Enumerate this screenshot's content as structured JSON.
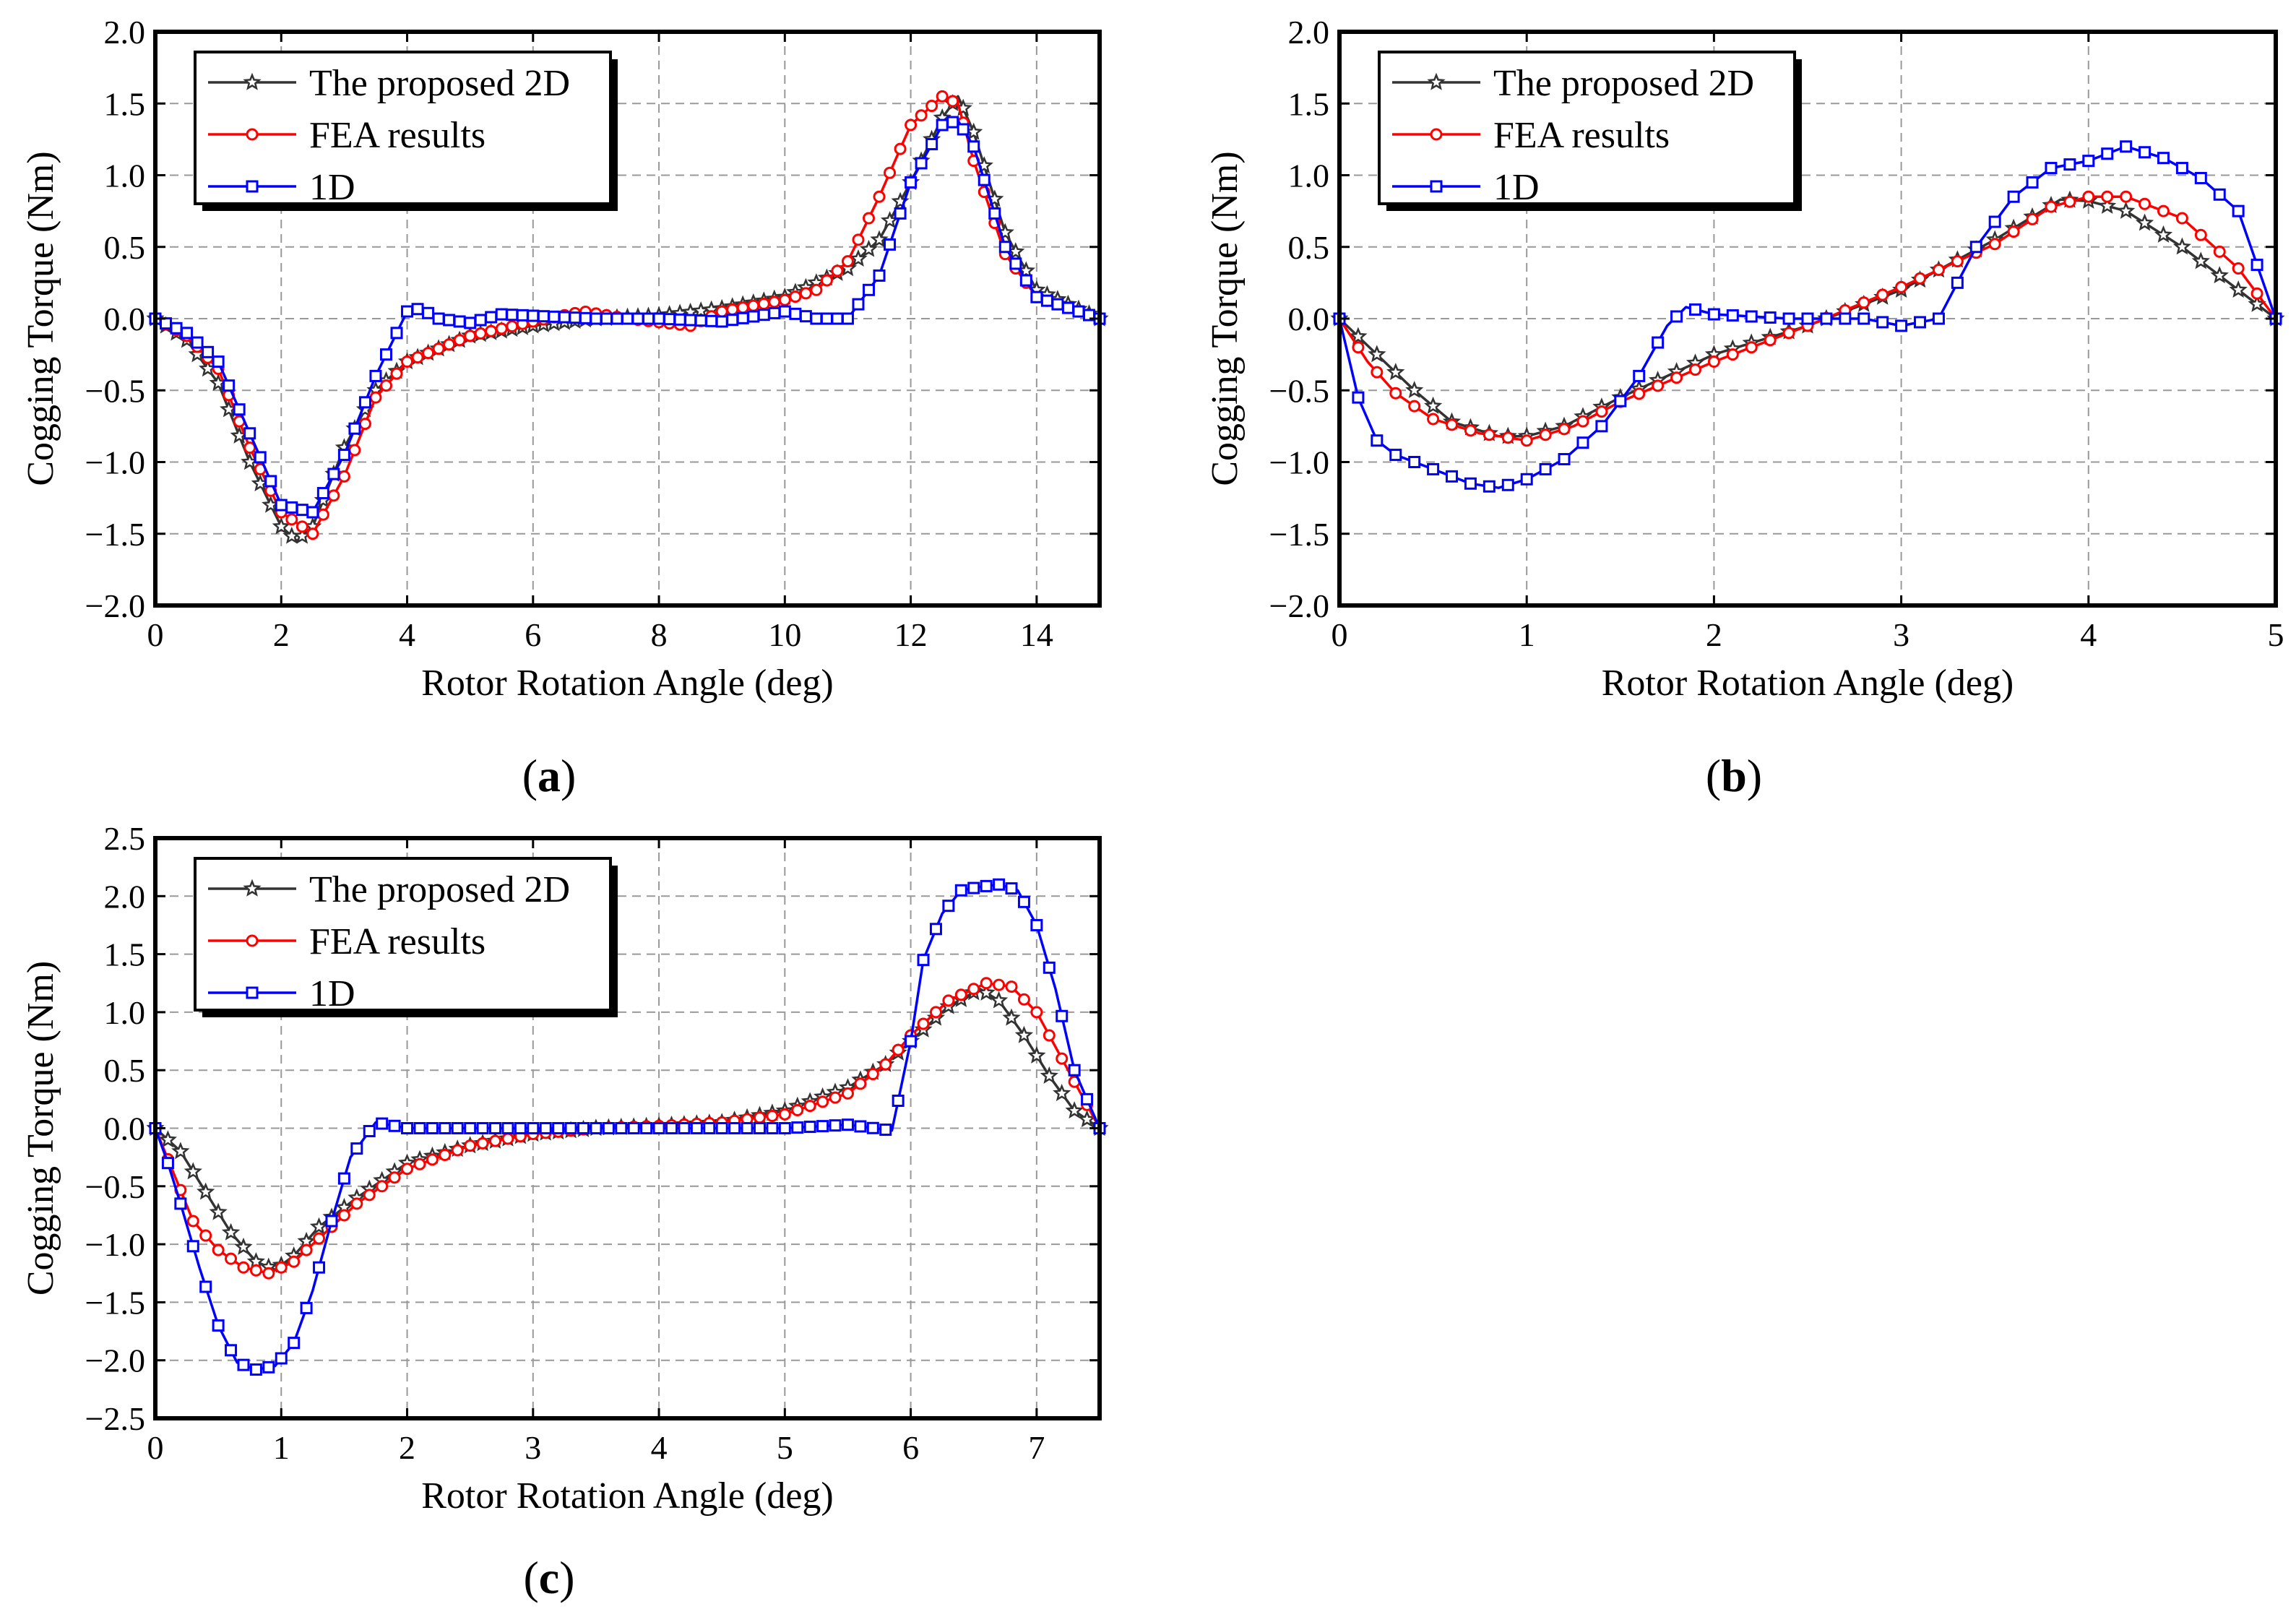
{
  "chart_data": [
    {
      "type": "line",
      "panel": "(a)",
      "caption_letter": "a",
      "xlabel": "Rotor Rotation Angle (deg)",
      "ylabel": "Cogging Torque (Nm)",
      "xlim": [
        0,
        15
      ],
      "ylim": [
        -2.0,
        2.0
      ],
      "xticks": [
        0,
        2,
        4,
        6,
        8,
        10,
        12,
        14
      ],
      "xtick_labels": [
        "0",
        "2",
        "4",
        "6",
        "8",
        "10",
        "12",
        "14"
      ],
      "yticks": [
        -2.0,
        -1.5,
        -1.0,
        -0.5,
        0.0,
        0.5,
        1.0,
        1.5,
        2.0
      ],
      "ytick_labels": [
        "−2.0",
        "−1.5",
        "−1.0",
        "−0.5",
        "0.0",
        "0.5",
        "1.0",
        "1.5",
        "2.0"
      ],
      "grid": true,
      "legend_position": "top-left",
      "series": [
        {
          "name": "The proposed 2D",
          "color": "#333333",
          "marker": "star",
          "x": [
            0,
            0.5,
            1,
            1.5,
            2,
            2.25,
            2.5,
            3,
            3.5,
            4,
            5,
            6,
            7,
            8,
            9,
            10,
            11,
            11.5,
            12,
            12.5,
            12.75,
            13,
            13.5,
            14,
            15
          ],
          "y": [
            0,
            -0.15,
            -0.45,
            -1.0,
            -1.45,
            -1.55,
            -1.45,
            -0.9,
            -0.5,
            -0.3,
            -0.12,
            -0.05,
            0.0,
            0.02,
            0.07,
            0.15,
            0.35,
            0.55,
            0.95,
            1.4,
            1.55,
            1.3,
            0.6,
            0.2,
            0.0
          ]
        },
        {
          "name": "FEA results",
          "color": "#ff0000",
          "marker": "circle",
          "x": [
            0,
            0.5,
            1,
            1.5,
            2,
            2.5,
            3,
            3.5,
            4,
            5,
            6,
            6.8,
            7.5,
            8.5,
            9,
            10,
            10.5,
            11,
            11.5,
            12,
            12.5,
            12.75,
            13,
            13.5,
            14,
            15
          ],
          "y": [
            0,
            -0.12,
            -0.35,
            -0.9,
            -1.35,
            -1.5,
            -1.1,
            -0.55,
            -0.3,
            -0.12,
            -0.02,
            0.05,
            0.0,
            -0.05,
            0.05,
            0.13,
            0.2,
            0.4,
            0.85,
            1.35,
            1.55,
            1.5,
            1.1,
            0.45,
            0.15,
            0.0
          ]
        },
        {
          "name": "1D",
          "color": "#0000ff",
          "marker": "square",
          "x": [
            0,
            0.5,
            1,
            1.5,
            2,
            2.5,
            3,
            3.5,
            4,
            4.2,
            4.5,
            5,
            5.5,
            6,
            7,
            8,
            9,
            10,
            10.5,
            11,
            11.5,
            12,
            12.5,
            12.75,
            13,
            13.5,
            14,
            15
          ],
          "y": [
            0,
            -0.1,
            -0.3,
            -0.8,
            -1.3,
            -1.35,
            -0.95,
            -0.4,
            0.05,
            0.07,
            0.0,
            -0.03,
            0.03,
            0.02,
            0.0,
            0.0,
            -0.02,
            0.05,
            0.0,
            0.0,
            0.3,
            0.95,
            1.35,
            1.38,
            1.2,
            0.5,
            0.15,
            0.0
          ]
        }
      ]
    },
    {
      "type": "line",
      "panel": "(b)",
      "caption_letter": "b",
      "xlabel": "Rotor Rotation Angle (deg)",
      "ylabel": "Cogging Torque (Nm)",
      "xlim": [
        0,
        5
      ],
      "ylim": [
        -2.0,
        2.0
      ],
      "xticks": [
        0,
        1,
        2,
        3,
        4,
        5
      ],
      "xtick_labels": [
        "0",
        "1",
        "2",
        "3",
        "4",
        "5"
      ],
      "yticks": [
        -2.0,
        -1.5,
        -1.0,
        -0.5,
        0.0,
        0.5,
        1.0,
        1.5,
        2.0
      ],
      "ytick_labels": [
        "−2.0",
        "−1.5",
        "−1.0",
        "−0.5",
        "0.0",
        "0.5",
        "1.0",
        "1.5",
        "2.0"
      ],
      "grid": true,
      "legend_position": "top-left",
      "series": [
        {
          "name": "The proposed 2D",
          "color": "#333333",
          "marker": "star",
          "x": [
            0,
            0.2,
            0.4,
            0.6,
            0.85,
            1.0,
            1.2,
            1.5,
            2.0,
            2.5,
            3.0,
            3.5,
            3.85,
            4.0,
            4.2,
            4.5,
            4.8,
            5.0
          ],
          "y": [
            0,
            -0.25,
            -0.5,
            -0.72,
            -0.82,
            -0.82,
            -0.75,
            -0.55,
            -0.25,
            -0.05,
            0.2,
            0.55,
            0.83,
            0.82,
            0.75,
            0.5,
            0.2,
            0.0
          ]
        },
        {
          "name": "FEA results",
          "color": "#ff0000",
          "marker": "circle",
          "x": [
            0,
            0.15,
            0.3,
            0.5,
            0.75,
            1.0,
            1.25,
            1.5,
            2.0,
            2.5,
            3.0,
            3.5,
            3.8,
            4.0,
            4.2,
            4.5,
            4.8,
            5.0
          ],
          "y": [
            0,
            -0.3,
            -0.52,
            -0.7,
            -0.8,
            -0.85,
            -0.75,
            -0.58,
            -0.3,
            -0.05,
            0.22,
            0.52,
            0.78,
            0.85,
            0.85,
            0.7,
            0.35,
            0.0
          ]
        },
        {
          "name": "1D",
          "color": "#0000ff",
          "marker": "square",
          "x": [
            0,
            0.1,
            0.2,
            0.3,
            0.5,
            0.7,
            0.85,
            1.0,
            1.2,
            1.4,
            1.6,
            1.75,
            1.85,
            2.0,
            2.4,
            2.8,
            3.0,
            3.2,
            3.4,
            3.6,
            3.8,
            4.0,
            4.2,
            4.4,
            4.6,
            4.8,
            5.0
          ],
          "y": [
            0,
            -0.55,
            -0.85,
            -0.95,
            -1.05,
            -1.15,
            -1.18,
            -1.12,
            -0.98,
            -0.75,
            -0.4,
            -0.05,
            0.08,
            0.03,
            0.0,
            0.0,
            -0.05,
            0.0,
            0.5,
            0.85,
            1.05,
            1.1,
            1.2,
            1.12,
            0.98,
            0.75,
            0.0
          ]
        }
      ]
    },
    {
      "type": "line",
      "panel": "(c)",
      "caption_letter": "c",
      "xlabel": "Rotor Rotation Angle (deg)",
      "ylabel": "Cogging Torque (Nm)",
      "xlim": [
        0,
        7.5
      ],
      "ylim": [
        -2.5,
        2.5
      ],
      "xticks": [
        0,
        1,
        2,
        3,
        4,
        5,
        6,
        7
      ],
      "xtick_labels": [
        "0",
        "1",
        "2",
        "3",
        "4",
        "5",
        "6",
        "7"
      ],
      "yticks": [
        -2.5,
        -2.0,
        -1.5,
        -1.0,
        -0.5,
        0.0,
        0.5,
        1.0,
        1.5,
        2.0,
        2.5
      ],
      "ytick_labels": [
        "−2.5",
        "−2.0",
        "−1.5",
        "−1.0",
        "−0.5",
        "0.0",
        "0.5",
        "1.0",
        "1.5",
        "2.0",
        "2.5"
      ],
      "grid": true,
      "legend_position": "top-left",
      "series": [
        {
          "name": "The proposed 2D",
          "color": "#333333",
          "marker": "star",
          "x": [
            0,
            0.2,
            0.4,
            0.6,
            0.8,
            0.95,
            1.1,
            1.3,
            1.6,
            2.0,
            2.5,
            3.0,
            3.5,
            4.0,
            4.5,
            5.0,
            5.5,
            5.8,
            6.0,
            6.3,
            6.55,
            6.7,
            6.9,
            7.1,
            7.3,
            7.5
          ],
          "y": [
            0,
            -0.2,
            -0.55,
            -0.9,
            -1.15,
            -1.22,
            -1.1,
            -0.85,
            -0.6,
            -0.3,
            -0.15,
            -0.05,
            0.0,
            0.02,
            0.05,
            0.15,
            0.35,
            0.55,
            0.75,
            1.05,
            1.2,
            1.1,
            0.8,
            0.45,
            0.15,
            0.0
          ]
        },
        {
          "name": "FEA results",
          "color": "#ff0000",
          "marker": "circle",
          "x": [
            0,
            0.15,
            0.3,
            0.5,
            0.7,
            0.9,
            1.1,
            1.3,
            1.6,
            2.0,
            2.5,
            3.0,
            3.5,
            4.0,
            4.5,
            5.0,
            5.5,
            5.8,
            6.0,
            6.3,
            6.6,
            6.8,
            7.0,
            7.2,
            7.4,
            7.5
          ],
          "y": [
            0,
            -0.4,
            -0.8,
            -1.05,
            -1.2,
            -1.25,
            -1.15,
            -0.95,
            -0.65,
            -0.35,
            -0.15,
            -0.05,
            0.0,
            0.02,
            0.05,
            0.12,
            0.3,
            0.55,
            0.8,
            1.1,
            1.25,
            1.22,
            1.0,
            0.6,
            0.2,
            0.0
          ]
        },
        {
          "name": "1D",
          "color": "#0000ff",
          "marker": "square",
          "x": [
            0,
            0.1,
            0.2,
            0.35,
            0.5,
            0.65,
            0.8,
            0.95,
            1.1,
            1.25,
            1.4,
            1.55,
            1.75,
            2.0,
            3.0,
            4.0,
            5.0,
            5.5,
            5.85,
            6.0,
            6.1,
            6.25,
            6.4,
            6.55,
            6.7,
            6.85,
            7.0,
            7.15,
            7.3,
            7.5
          ],
          "y": [
            0,
            -0.3,
            -0.65,
            -1.2,
            -1.7,
            -2.02,
            -2.08,
            -2.05,
            -1.85,
            -1.4,
            -0.8,
            -0.25,
            0.05,
            0.0,
            0.0,
            0.0,
            0.0,
            0.03,
            -0.02,
            0.75,
            1.45,
            1.85,
            2.05,
            2.08,
            2.1,
            2.05,
            1.75,
            1.2,
            0.5,
            0.0
          ]
        }
      ]
    }
  ]
}
